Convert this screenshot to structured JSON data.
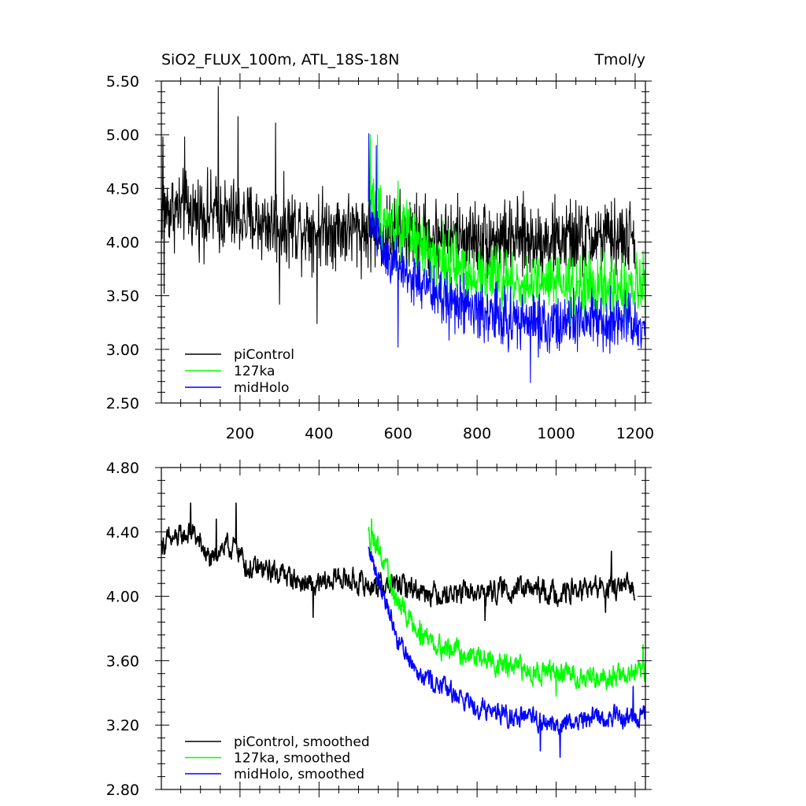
{
  "chart_data": [
    {
      "type": "line",
      "title": "SiO2_FLUX_100m, ATL_18S-18N",
      "units": "Tmol/y",
      "xlim": [
        1,
        1226
      ],
      "ylim": [
        2.5,
        5.5
      ],
      "x_ticks": [
        200,
        400,
        600,
        800,
        1000,
        1200
      ],
      "x_tick_labels": [
        "200",
        "400",
        "600",
        "800",
        "1000",
        "1200"
      ],
      "y_ticks": [
        2.5,
        3.0,
        3.5,
        4.0,
        4.5,
        5.0,
        5.5
      ],
      "y_tick_labels": [
        "2.50",
        "3.00",
        "3.50",
        "4.00",
        "4.50",
        "5.00",
        "5.50"
      ],
      "legend_position": "bottom-left",
      "series": [
        {
          "name": "piControl",
          "color": "#000000",
          "x_start": 1,
          "x_end": 1200,
          "base": 4.15,
          "trend": [
            [
              1,
              4.32
            ],
            [
              150,
              4.25
            ],
            [
              300,
              4.15
            ],
            [
              500,
              4.12
            ],
            [
              700,
              4.05
            ],
            [
              900,
              4.02
            ],
            [
              1200,
              4.03
            ]
          ],
          "noise": 0.28,
          "spikes": [
            [
              5,
              4.98
            ],
            [
              145,
              5.45
            ],
            [
              195,
              5.17
            ],
            [
              290,
              5.11
            ],
            [
              60,
              4.98
            ],
            [
              395,
              3.24
            ],
            [
              300,
              3.42
            ],
            [
              8,
              3.52
            ]
          ]
        },
        {
          "name": "127ka",
          "color": "#00ff00",
          "x_start": 525,
          "x_end": 1226,
          "base": 3.65,
          "trend": [
            [
              525,
              4.45
            ],
            [
              560,
              4.25
            ],
            [
              620,
              4.05
            ],
            [
              700,
              3.85
            ],
            [
              800,
              3.7
            ],
            [
              900,
              3.62
            ],
            [
              1000,
              3.6
            ],
            [
              1100,
              3.57
            ],
            [
              1226,
              3.55
            ]
          ],
          "noise": 0.24,
          "spikes": [
            [
              530,
              5.0
            ],
            [
              548,
              5.0
            ],
            [
              600,
              4.57
            ],
            [
              1220,
              3.92
            ]
          ]
        },
        {
          "name": "midHolo",
          "color": "#0000ff",
          "x_start": 525,
          "x_end": 1226,
          "base": 3.3,
          "trend": [
            [
              525,
              4.3
            ],
            [
              560,
              3.95
            ],
            [
              620,
              3.7
            ],
            [
              700,
              3.5
            ],
            [
              800,
              3.35
            ],
            [
              900,
              3.27
            ],
            [
              1000,
              3.24
            ],
            [
              1100,
              3.24
            ],
            [
              1226,
              3.25
            ]
          ],
          "noise": 0.22,
          "spikes": [
            [
              526,
              5.01
            ],
            [
              545,
              4.9
            ],
            [
              600,
              3.02
            ],
            [
              935,
              2.69
            ]
          ]
        }
      ]
    },
    {
      "type": "line",
      "title": "",
      "xlim": [
        1,
        1226
      ],
      "ylim": [
        2.8,
        4.8
      ],
      "x_ticks": [
        200,
        400,
        600,
        800,
        1000,
        1200
      ],
      "x_tick_labels": [],
      "y_ticks": [
        2.8,
        3.2,
        3.6,
        4.0,
        4.4,
        4.8
      ],
      "y_tick_labels": [
        "2.80",
        "3.20",
        "3.60",
        "4.00",
        "4.40",
        "4.80"
      ],
      "legend_position": "bottom-left",
      "series": [
        {
          "name": "piControl, smoothed",
          "color": "#000000",
          "x_start": 1,
          "x_end": 1200,
          "trend": [
            [
              1,
              4.32
            ],
            [
              60,
              4.38
            ],
            [
              80,
              4.4
            ],
            [
              130,
              4.2
            ],
            [
              145,
              4.3
            ],
            [
              195,
              4.3
            ],
            [
              220,
              4.17
            ],
            [
              300,
              4.15
            ],
            [
              390,
              4.05
            ],
            [
              450,
              4.12
            ],
            [
              520,
              4.07
            ],
            [
              600,
              4.07
            ],
            [
              700,
              4.02
            ],
            [
              800,
              4.02
            ],
            [
              900,
              4.05
            ],
            [
              1000,
              4.02
            ],
            [
              1100,
              4.05
            ],
            [
              1200,
              4.05
            ]
          ],
          "noise": 0.055,
          "spikes": [
            [
              75,
              4.58
            ],
            [
              190,
              4.58
            ],
            [
              140,
              4.48
            ],
            [
              20,
              4.43
            ],
            [
              385,
              3.87
            ],
            [
              820,
              3.85
            ],
            [
              1140,
              4.28
            ],
            [
              1125,
              3.9
            ]
          ]
        },
        {
          "name": "127ka, smoothed",
          "color": "#00ff00",
          "x_start": 525,
          "x_end": 1226,
          "trend": [
            [
              525,
              4.38
            ],
            [
              545,
              4.35
            ],
            [
              570,
              4.15
            ],
            [
              600,
              3.95
            ],
            [
              650,
              3.8
            ],
            [
              700,
              3.7
            ],
            [
              800,
              3.62
            ],
            [
              900,
              3.55
            ],
            [
              1000,
              3.52
            ],
            [
              1100,
              3.5
            ],
            [
              1226,
              3.52
            ]
          ],
          "noise": 0.055,
          "spikes": [
            [
              533,
              4.48
            ],
            [
              655,
              3.85
            ],
            [
              1000,
              3.38
            ],
            [
              1220,
              3.7
            ]
          ]
        },
        {
          "name": "midHolo, smoothed",
          "color": "#0000ff",
          "x_start": 525,
          "x_end": 1226,
          "trend": [
            [
              525,
              4.28
            ],
            [
              560,
              4.05
            ],
            [
              600,
              3.72
            ],
            [
              650,
              3.55
            ],
            [
              700,
              3.45
            ],
            [
              800,
              3.32
            ],
            [
              900,
              3.25
            ],
            [
              1000,
              3.2
            ],
            [
              1100,
              3.25
            ],
            [
              1226,
              3.25
            ]
          ],
          "noise": 0.05,
          "spikes": [
            [
              526,
              4.3
            ],
            [
              960,
              3.04
            ],
            [
              1010,
              3.0
            ],
            [
              1195,
              3.44
            ]
          ]
        }
      ]
    }
  ]
}
